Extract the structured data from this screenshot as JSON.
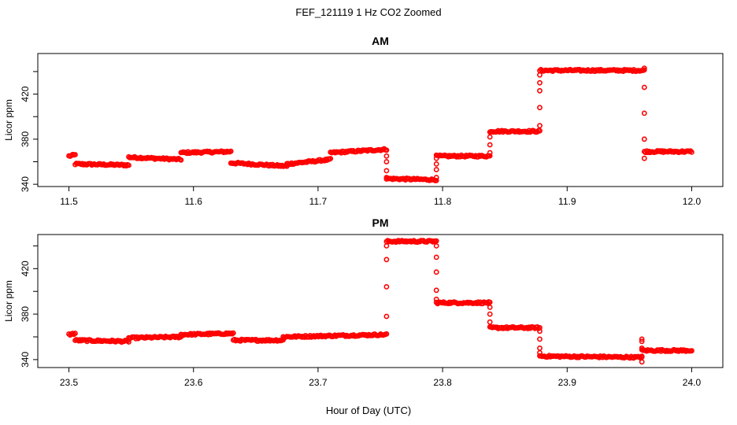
{
  "figure": {
    "title": "FEF_121119  1 Hz CO2 Zoomed",
    "xlabel": "Hour of Day (UTC)"
  },
  "chart_data": [
    {
      "type": "scatter",
      "title": "AM",
      "ylabel": "Licor ppm",
      "xlim": [
        11.475,
        12.025
      ],
      "ylim": [
        338,
        456
      ],
      "xticks": [
        "11.5",
        "11.6",
        "11.7",
        "11.8",
        "11.9",
        "12.0"
      ],
      "yticks": [
        "340",
        "380",
        "420"
      ],
      "marker_color": "#ff0000",
      "segments": [
        {
          "x": [
            11.5,
            11.505
          ],
          "y": [
            365,
            366
          ]
        },
        {
          "x": [
            11.505,
            11.548
          ],
          "y": [
            358,
            357
          ]
        },
        {
          "x": [
            11.548,
            11.59
          ],
          "y": [
            364,
            362
          ]
        },
        {
          "x": [
            11.59,
            11.63
          ],
          "y": [
            368,
            369
          ]
        },
        {
          "x": [
            11.63,
            11.675
          ],
          "y": [
            359,
            356
          ]
        },
        {
          "x": [
            11.675,
            11.71
          ],
          "y": [
            358,
            362
          ]
        },
        {
          "x": [
            11.71,
            11.755
          ],
          "y": [
            368,
            371
          ]
        },
        {
          "x": [
            11.755,
            11.795
          ],
          "y": [
            345,
            344
          ]
        },
        {
          "x": [
            11.795,
            11.838
          ],
          "y": [
            365,
            365
          ]
        },
        {
          "x": [
            11.838,
            11.878
          ],
          "y": [
            387,
            387
          ]
        },
        {
          "x": [
            11.878,
            11.962
          ],
          "y": [
            441,
            441
          ]
        },
        {
          "x": [
            11.962,
            12.0
          ],
          "y": [
            369,
            369
          ]
        }
      ],
      "transitions": [
        {
          "x": 11.755,
          "y": [
            365,
            360,
            352,
            346
          ]
        },
        {
          "x": 11.795,
          "y": [
            346,
            353,
            358,
            363
          ]
        },
        {
          "x": 11.838,
          "y": [
            368,
            375,
            382
          ]
        },
        {
          "x": 11.878,
          "y": [
            392,
            408,
            423,
            430,
            437
          ]
        },
        {
          "x": 11.962,
          "y": [
            443,
            426,
            403,
            380,
            363
          ]
        }
      ]
    },
    {
      "type": "scatter",
      "title": "PM",
      "ylabel": "Licor ppm",
      "xlim": [
        23.475,
        24.025
      ],
      "ylim": [
        333,
        450
      ],
      "xticks": [
        "23.5",
        "23.6",
        "23.7",
        "23.8",
        "23.9",
        "24.0"
      ],
      "yticks": [
        "340",
        "380",
        "420"
      ],
      "marker_color": "#ff0000",
      "segments": [
        {
          "x": [
            23.5,
            23.505
          ],
          "y": [
            362,
            363
          ]
        },
        {
          "x": [
            23.505,
            23.548
          ],
          "y": [
            357,
            356
          ]
        },
        {
          "x": [
            23.548,
            23.59
          ],
          "y": [
            359,
            360
          ]
        },
        {
          "x": [
            23.59,
            23.632
          ],
          "y": [
            362,
            363
          ]
        },
        {
          "x": [
            23.632,
            23.672
          ],
          "y": [
            357,
            357
          ]
        },
        {
          "x": [
            23.672,
            23.755
          ],
          "y": [
            360,
            362
          ]
        },
        {
          "x": [
            23.755,
            23.795
          ],
          "y": [
            444,
            444
          ]
        },
        {
          "x": [
            23.795,
            23.838
          ],
          "y": [
            390,
            390
          ]
        },
        {
          "x": [
            23.838,
            23.878
          ],
          "y": [
            368,
            368
          ]
        },
        {
          "x": [
            23.878,
            23.96
          ],
          "y": [
            343,
            342
          ]
        },
        {
          "x": [
            23.96,
            24.0
          ],
          "y": [
            348,
            348
          ]
        }
      ],
      "transitions": [
        {
          "x": 23.755,
          "y": [
            378,
            404,
            428,
            440
          ]
        },
        {
          "x": 23.795,
          "y": [
            440,
            430,
            417,
            401,
            393
          ]
        },
        {
          "x": 23.838,
          "y": [
            386,
            380,
            373
          ]
        },
        {
          "x": 23.878,
          "y": [
            365,
            358,
            350,
            346
          ]
        },
        {
          "x": 23.96,
          "y": [
            358,
            356,
            350,
            338,
            343
          ]
        }
      ]
    }
  ]
}
